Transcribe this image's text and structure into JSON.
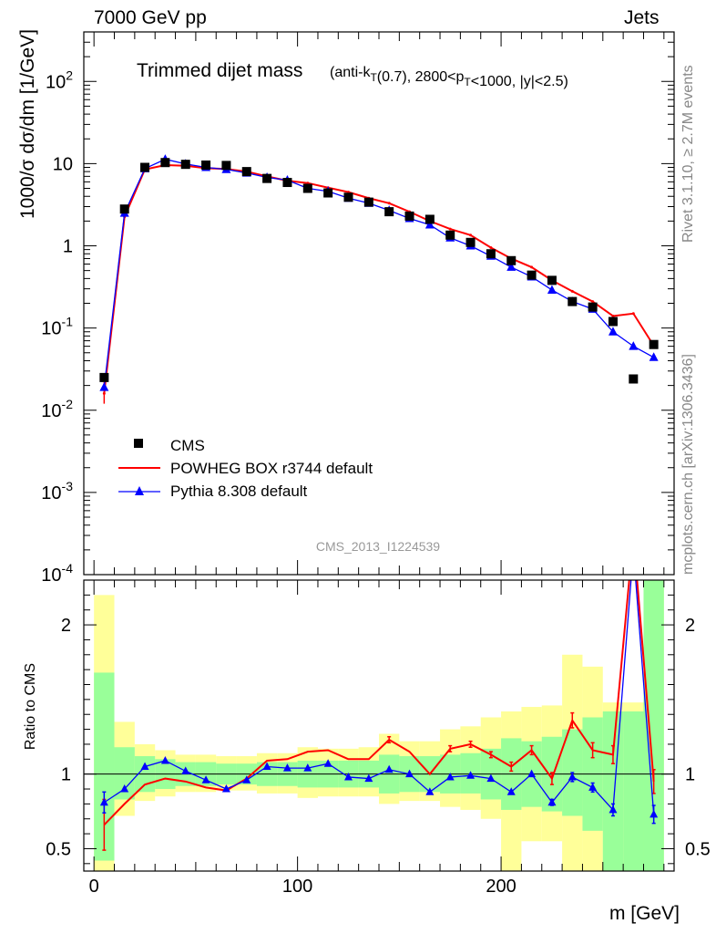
{
  "header": {
    "energy": "7000 GeV pp",
    "process": "Jets"
  },
  "side_labels": {
    "rivet": "Rivet 3.1.10, ≥ 2.7M events",
    "mcplots": "mcplots.cern.ch [arXiv:1306.3436]"
  },
  "colors": {
    "data": "#000000",
    "powheg": "#ff0000",
    "pythia": "#0000ff",
    "band_inner": "#99ff99",
    "band_outer": "#ffff99"
  },
  "chart_data": [
    {
      "type": "scatter",
      "title": "Trimmed dijet mass",
      "title_suffix": "(anti-k_T(0.7), 2800<p_T<1000, |y|<2.5)",
      "ylabel": "1000/σ dσ/dm [1/GeV]",
      "yscale": "log",
      "ylim": [
        0.0001,
        400
      ],
      "xlim": [
        -5,
        285
      ],
      "y_ticks": [
        "10^-4",
        "10^-3",
        "10^-2",
        "10^-1",
        "1",
        "10",
        "10^2"
      ],
      "analysis_label": "CMS_2013_I1224539",
      "legend_position": "bottom-left",
      "x": [
        5,
        15,
        25,
        35,
        45,
        55,
        65,
        75,
        85,
        95,
        105,
        115,
        125,
        135,
        145,
        155,
        165,
        175,
        185,
        195,
        205,
        215,
        225,
        235,
        245,
        255,
        265,
        275
      ],
      "series": [
        {
          "name": "CMS",
          "marker": "square",
          "values": [
            0.025,
            2.8,
            9.0,
            10.3,
            9.8,
            9.6,
            9.5,
            8.0,
            6.6,
            5.9,
            5.0,
            4.4,
            3.9,
            3.4,
            2.6,
            2.3,
            2.1,
            1.35,
            1.1,
            0.8,
            0.66,
            0.44,
            0.38,
            0.21,
            0.18,
            0.12,
            0.024,
            0.063
          ]
        },
        {
          "name": "POWHEG BOX r3744 default",
          "marker": "line",
          "values": [
            0.016,
            2.25,
            8.5,
            9.6,
            9.4,
            8.8,
            8.6,
            8.0,
            7.0,
            6.2,
            5.8,
            5.1,
            4.5,
            3.8,
            3.3,
            2.6,
            2.0,
            1.6,
            1.35,
            0.95,
            0.7,
            0.55,
            0.38,
            0.28,
            0.21,
            0.14,
            0.15,
            0.061
          ]
        },
        {
          "name": "Pythia 8.308 default",
          "marker": "triangle",
          "values": [
            0.019,
            2.5,
            8.7,
            11.3,
            9.9,
            9.0,
            8.5,
            7.7,
            6.8,
            6.3,
            5.0,
            4.6,
            3.8,
            3.3,
            2.7,
            2.15,
            1.8,
            1.25,
            1.0,
            0.75,
            0.55,
            0.42,
            0.29,
            0.21,
            0.17,
            0.09,
            0.06,
            0.044
          ]
        }
      ]
    },
    {
      "type": "line",
      "ylabel": "Ratio to CMS",
      "xlabel": "m [GeV]",
      "ylim": [
        0.35,
        2.3
      ],
      "xlim": [
        -5,
        285
      ],
      "x_ticks": [
        0,
        100,
        200
      ],
      "y_ticks": [
        0.5,
        1,
        2
      ],
      "x": [
        5,
        15,
        25,
        35,
        45,
        55,
        65,
        75,
        85,
        95,
        105,
        115,
        125,
        135,
        145,
        155,
        165,
        175,
        185,
        195,
        205,
        215,
        225,
        235,
        245,
        255,
        265,
        275
      ],
      "bands": {
        "inner_low": [
          0.42,
          0.83,
          0.88,
          0.9,
          0.92,
          0.92,
          0.93,
          0.93,
          0.92,
          0.92,
          0.91,
          0.91,
          0.91,
          0.91,
          0.87,
          0.88,
          0.88,
          0.87,
          0.87,
          0.83,
          0.76,
          0.78,
          0.75,
          0.72,
          0.62,
          0.32,
          0.32,
          0.32
        ],
        "inner_high": [
          1.68,
          1.18,
          1.12,
          1.1,
          1.08,
          1.08,
          1.07,
          1.07,
          1.08,
          1.08,
          1.09,
          1.09,
          1.09,
          1.09,
          1.13,
          1.12,
          1.12,
          1.13,
          1.14,
          1.17,
          1.24,
          1.22,
          1.25,
          1.3,
          1.38,
          1.42,
          1.42,
          2.5
        ],
        "outer_low": [
          0.32,
          0.72,
          0.82,
          0.85,
          0.88,
          0.88,
          0.89,
          0.89,
          0.87,
          0.87,
          0.84,
          0.85,
          0.85,
          0.85,
          0.8,
          0.82,
          0.82,
          0.78,
          0.76,
          0.7,
          0.32,
          0.55,
          0.55,
          0.32,
          0.32,
          0.32,
          0.32,
          0.32
        ],
        "outer_high": [
          2.2,
          1.35,
          1.2,
          1.16,
          1.13,
          1.13,
          1.12,
          1.12,
          1.14,
          1.14,
          1.18,
          1.17,
          1.17,
          1.18,
          1.27,
          1.22,
          1.22,
          1.3,
          1.32,
          1.38,
          1.42,
          1.45,
          1.46,
          1.8,
          1.72,
          1.48,
          1.48,
          2.5
        ]
      },
      "series": [
        {
          "name": "POWHEG BOX r3744 default",
          "values": [
            0.66,
            0.8,
            0.93,
            0.97,
            0.95,
            0.91,
            0.89,
            0.97,
            1.09,
            1.1,
            1.15,
            1.16,
            1.1,
            1.1,
            1.23,
            1.15,
            1.0,
            1.17,
            1.2,
            1.13,
            1.05,
            1.16,
            0.97,
            1.36,
            1.16,
            1.13,
            2.6,
            0.95
          ],
          "errors": [
            0.17,
            0.01,
            0.01,
            0.01,
            0.01,
            0.01,
            0.01,
            0.01,
            0.01,
            0.01,
            0.01,
            0.01,
            0.01,
            0.01,
            0.02,
            0.01,
            0.01,
            0.02,
            0.02,
            0.02,
            0.03,
            0.03,
            0.04,
            0.05,
            0.05,
            0.06,
            0.1,
            0.08
          ]
        },
        {
          "name": "Pythia 8.308 default",
          "values": [
            0.81,
            0.9,
            1.05,
            1.09,
            1.02,
            0.96,
            0.9,
            0.96,
            1.05,
            1.04,
            1.04,
            1.07,
            0.98,
            0.97,
            1.03,
            1.0,
            0.88,
            0.98,
            0.99,
            0.97,
            0.88,
            1.0,
            0.81,
            0.98,
            0.91,
            0.76,
            2.5,
            0.73
          ],
          "errors": [
            0.07,
            0.01,
            0.01,
            0.01,
            0.01,
            0.01,
            0.01,
            0.01,
            0.01,
            0.01,
            0.01,
            0.01,
            0.01,
            0.01,
            0.01,
            0.01,
            0.01,
            0.01,
            0.01,
            0.01,
            0.01,
            0.01,
            0.02,
            0.03,
            0.03,
            0.04,
            0.05,
            0.06
          ]
        }
      ]
    }
  ]
}
